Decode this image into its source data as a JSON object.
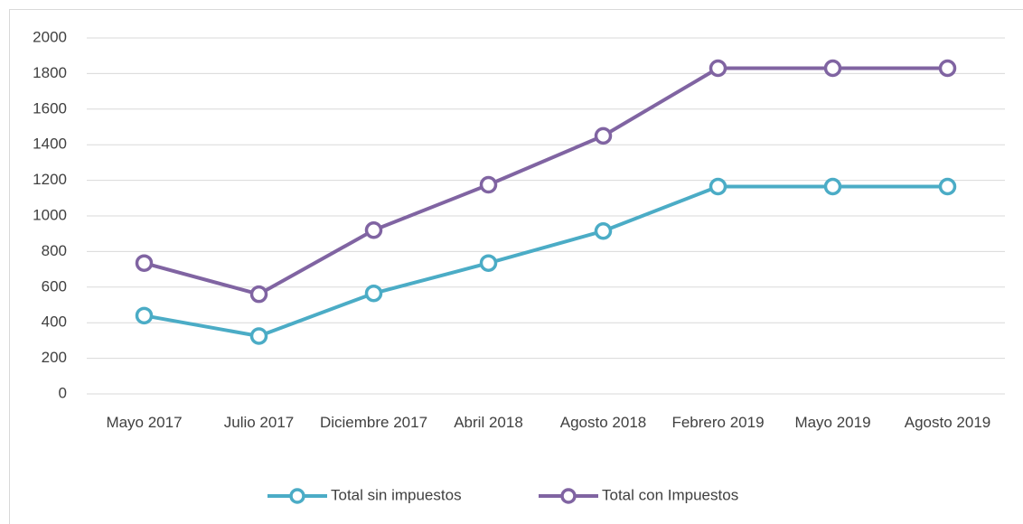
{
  "chart_data": {
    "type": "line",
    "categories": [
      "Mayo 2017",
      "Julio 2017",
      "Diciembre 2017",
      "Abril 2018",
      "Agosto 2018",
      "Febrero 2019",
      "Mayo 2019",
      "Agosto 2019"
    ],
    "series": [
      {
        "name": "Total sin impuestos",
        "color": "#4bacc6",
        "values": [
          440,
          325,
          565,
          735,
          915,
          1165,
          1165,
          1165
        ]
      },
      {
        "name": "Total con Impuestos",
        "color": "#8064a2",
        "values": [
          735,
          560,
          920,
          1175,
          1450,
          1830,
          1830,
          1830
        ]
      }
    ],
    "ylim": [
      0,
      2000
    ],
    "yticks": [
      0,
      200,
      400,
      600,
      800,
      1000,
      1200,
      1400,
      1600,
      1800,
      2000
    ],
    "grid": true,
    "legend": "bottom"
  }
}
